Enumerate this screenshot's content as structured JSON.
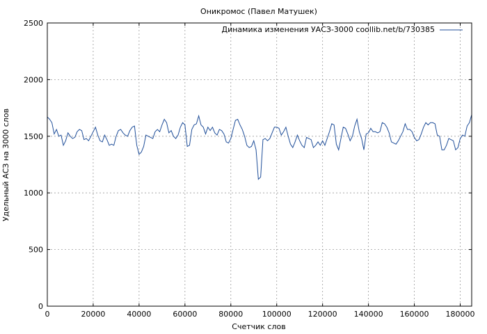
{
  "chart_data": {
    "type": "line",
    "title": "Оникромос (Павел Матушек)",
    "xlabel": "Счетчик слов",
    "ylabel": "Удельный АСЗ на 3000 слов",
    "xlim": [
      0,
      185000
    ],
    "ylim": [
      0,
      2500
    ],
    "xticks": [
      0,
      20000,
      40000,
      60000,
      80000,
      100000,
      120000,
      140000,
      160000,
      180000
    ],
    "xtick_labels": [
      "0",
      "20000",
      "40000",
      "60000",
      "80000",
      "100000",
      "120000",
      "140000",
      "160000",
      "180000"
    ],
    "yticks": [
      0,
      500,
      1000,
      1500,
      2000,
      2500
    ],
    "ytick_labels": [
      "0",
      "500",
      "1000",
      "1500",
      "2000",
      "2500"
    ],
    "grid": true,
    "legend": {
      "position": "top-right"
    },
    "colors": {
      "series": "#1f4e99",
      "grid": "#9a9a9a"
    },
    "series": [
      {
        "name": "Динамика изменения УАСЗ-3000 coollib.net/b/730385",
        "x": [
          0,
          1000,
          2000,
          3000,
          4000,
          5000,
          6000,
          7000,
          8000,
          9000,
          10000,
          11000,
          12000,
          13000,
          14000,
          15000,
          16000,
          17000,
          18000,
          19000,
          20000,
          21000,
          22000,
          23000,
          24000,
          25000,
          26000,
          27000,
          28000,
          29000,
          30000,
          31000,
          32000,
          33000,
          34000,
          35000,
          36000,
          37000,
          38000,
          39000,
          40000,
          41000,
          42000,
          43000,
          44000,
          45000,
          46000,
          47000,
          48000,
          49000,
          50000,
          51000,
          52000,
          53000,
          54000,
          55000,
          56000,
          57000,
          58000,
          59000,
          60000,
          61000,
          62000,
          63000,
          64000,
          65000,
          66000,
          67000,
          68000,
          69000,
          70000,
          71000,
          72000,
          73000,
          74000,
          75000,
          76000,
          77000,
          78000,
          79000,
          80000,
          81000,
          82000,
          83000,
          84000,
          85000,
          86000,
          87000,
          88000,
          89000,
          90000,
          91000,
          92000,
          93000,
          94000,
          95000,
          96000,
          97000,
          98000,
          99000,
          100000,
          101000,
          102000,
          103000,
          104000,
          105000,
          106000,
          107000,
          108000,
          109000,
          110000,
          111000,
          112000,
          113000,
          114000,
          115000,
          116000,
          117000,
          118000,
          119000,
          120000,
          121000,
          122000,
          123000,
          124000,
          125000,
          126000,
          127000,
          128000,
          129000,
          130000,
          131000,
          132000,
          133000,
          134000,
          135000,
          136000,
          137000,
          138000,
          139000,
          140000,
          141000,
          142000,
          143000,
          144000,
          145000,
          146000,
          147000,
          148000,
          149000,
          150000,
          151000,
          152000,
          153000,
          154000,
          155000,
          156000,
          157000,
          158000,
          159000,
          160000,
          161000,
          162000,
          163000,
          164000,
          165000,
          166000,
          167000,
          168000,
          169000,
          170000,
          171000,
          172000,
          173000,
          174000,
          175000,
          176000,
          177000,
          178000,
          179000,
          180000,
          181000,
          182000,
          183000,
          184000,
          185000
        ],
        "values": [
          1670,
          1650,
          1620,
          1520,
          1560,
          1500,
          1510,
          1420,
          1460,
          1530,
          1500,
          1480,
          1490,
          1540,
          1560,
          1550,
          1470,
          1480,
          1460,
          1500,
          1540,
          1580,
          1510,
          1460,
          1450,
          1510,
          1470,
          1420,
          1430,
          1420,
          1500,
          1550,
          1560,
          1530,
          1510,
          1500,
          1550,
          1580,
          1590,
          1420,
          1340,
          1360,
          1410,
          1510,
          1500,
          1490,
          1480,
          1540,
          1560,
          1540,
          1600,
          1650,
          1620,
          1530,
          1550,
          1500,
          1480,
          1510,
          1580,
          1620,
          1600,
          1410,
          1420,
          1560,
          1600,
          1610,
          1680,
          1600,
          1580,
          1520,
          1580,
          1550,
          1580,
          1530,
          1510,
          1560,
          1550,
          1520,
          1450,
          1440,
          1480,
          1560,
          1640,
          1650,
          1600,
          1560,
          1500,
          1420,
          1400,
          1410,
          1460,
          1380,
          1120,
          1140,
          1470,
          1480,
          1460,
          1480,
          1530,
          1580,
          1580,
          1570,
          1510,
          1540,
          1580,
          1500,
          1430,
          1400,
          1450,
          1510,
          1460,
          1420,
          1400,
          1490,
          1480,
          1470,
          1400,
          1420,
          1450,
          1420,
          1460,
          1420,
          1480,
          1540,
          1610,
          1600,
          1430,
          1380,
          1480,
          1580,
          1570,
          1520,
          1460,
          1500,
          1590,
          1650,
          1540,
          1480,
          1380,
          1520,
          1530,
          1570,
          1540,
          1540,
          1530,
          1540,
          1620,
          1610,
          1580,
          1530,
          1450,
          1440,
          1430,
          1460,
          1500,
          1540,
          1610,
          1560,
          1560,
          1540,
          1490,
          1460,
          1470,
          1520,
          1580,
          1620,
          1600,
          1620,
          1620,
          1610,
          1510,
          1500,
          1380,
          1380,
          1420,
          1480,
          1470,
          1460,
          1380,
          1400,
          1480,
          1510,
          1500,
          1590,
          1620,
          1690
        ]
      }
    ]
  }
}
